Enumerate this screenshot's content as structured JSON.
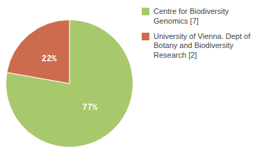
{
  "chart_data": {
    "type": "pie",
    "categories": [
      "Centre for Biodiversity\nGenomics [7]",
      "University of Vienna. Dept of\nBotany and Biodiversity\nResearch [2]"
    ],
    "values": [
      77,
      22
    ],
    "value_labels": [
      "77%",
      "22%"
    ],
    "colors": [
      "#a8c96b",
      "#cc6b4e"
    ],
    "data_labels": true,
    "legend": "upper right"
  }
}
